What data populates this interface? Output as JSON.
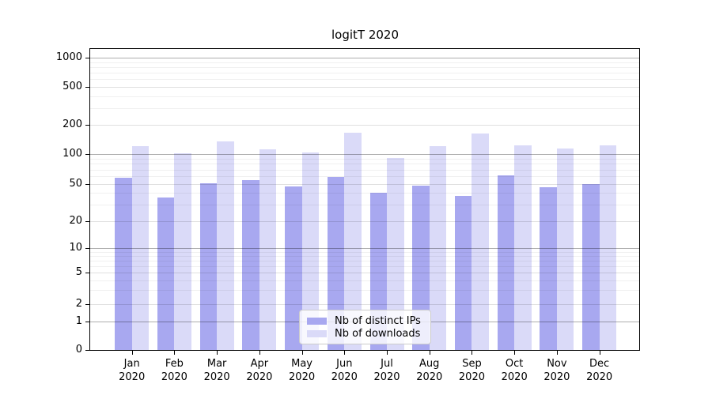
{
  "chart_data": {
    "type": "bar",
    "title": "logitT 2020",
    "xlabel": "",
    "ylabel": "",
    "x_tick_year": "2020",
    "months": [
      "Jan",
      "Feb",
      "Mar",
      "Apr",
      "May",
      "Jun",
      "Jul",
      "Aug",
      "Sep",
      "Oct",
      "Nov",
      "Dec"
    ],
    "categories": [
      "Jan 2020",
      "Feb 2020",
      "Mar 2020",
      "Apr 2020",
      "May 2020",
      "Jun 2020",
      "Jul 2020",
      "Aug 2020",
      "Sep 2020",
      "Oct 2020",
      "Nov 2020",
      "Dec 2020"
    ],
    "series": [
      {
        "name": "Nb of distinct IPs",
        "color": "#a8a8f0",
        "values": [
          58,
          36,
          51,
          55,
          47,
          59,
          40,
          48,
          37,
          61,
          46,
          50
        ]
      },
      {
        "name": "Nb of downloads",
        "color": "#dadaf8",
        "values": [
          121,
          101,
          136,
          112,
          103,
          165,
          92,
          121,
          164,
          124,
          115,
          124
        ]
      }
    ],
    "y_scale": "log-like",
    "y_ticks": [
      0,
      1,
      2,
      5,
      10,
      20,
      50,
      100,
      200,
      500,
      1000
    ],
    "y_minor_ticks": [
      3,
      4,
      6,
      7,
      8,
      9,
      30,
      40,
      60,
      70,
      80,
      90,
      300,
      400,
      600,
      700,
      800,
      900
    ],
    "ylim": [
      0,
      1250
    ],
    "grid": true,
    "legend_position": "lower center"
  }
}
